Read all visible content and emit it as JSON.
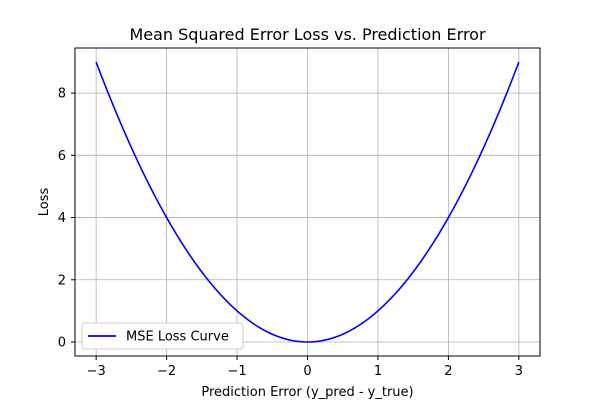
{
  "chart_data": {
    "type": "line",
    "title": "Mean Squared Error Loss vs. Prediction Error",
    "xlabel": "Prediction Error (y_pred - y_true)",
    "ylabel": "Loss",
    "xlim": [
      -3.3,
      3.3
    ],
    "ylim": [
      -0.45,
      9.45
    ],
    "xticks": [
      -3,
      -2,
      -1,
      0,
      1,
      2,
      3
    ],
    "xtick_labels": [
      "−3",
      "−2",
      "−1",
      "0",
      "1",
      "2",
      "3"
    ],
    "yticks": [
      0,
      2,
      4,
      6,
      8
    ],
    "ytick_labels": [
      "0",
      "2",
      "4",
      "6",
      "8"
    ],
    "grid": true,
    "legend_position": "lower-left",
    "series": [
      {
        "name": "MSE Loss Curve",
        "color": "#0000ff",
        "x": [
          -3.0,
          -2.75,
          -2.5,
          -2.25,
          -2.0,
          -1.75,
          -1.5,
          -1.25,
          -1.0,
          -0.75,
          -0.5,
          -0.25,
          0.0,
          0.25,
          0.5,
          0.75,
          1.0,
          1.25,
          1.5,
          1.75,
          2.0,
          2.25,
          2.5,
          2.75,
          3.0
        ],
        "y": [
          9.0,
          7.5625,
          6.25,
          5.0625,
          4.0,
          3.0625,
          2.25,
          1.5625,
          1.0,
          0.5625,
          0.25,
          0.0625,
          0.0,
          0.0625,
          0.25,
          0.5625,
          1.0,
          1.5625,
          2.25,
          3.0625,
          4.0,
          5.0625,
          6.25,
          7.5625,
          9.0
        ]
      }
    ]
  }
}
